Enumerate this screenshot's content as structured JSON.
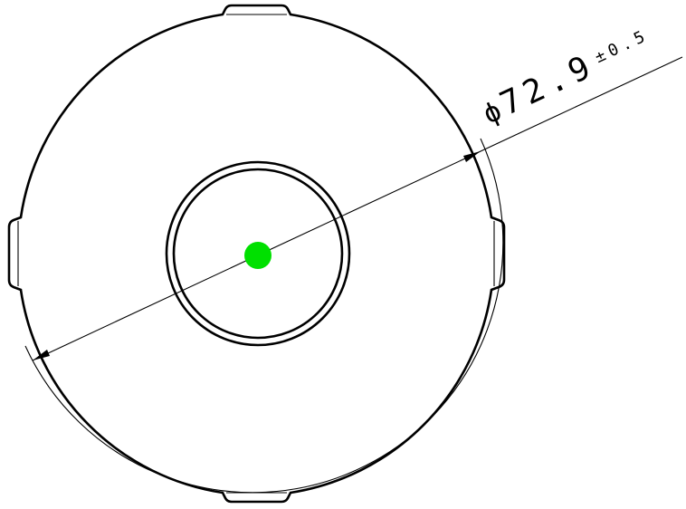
{
  "diameter_label": {
    "symbol": "ϕ",
    "value": "72.9",
    "tolerance": "±0.5"
  },
  "center_marker_color": "#00e000",
  "line_color": "#000000"
}
